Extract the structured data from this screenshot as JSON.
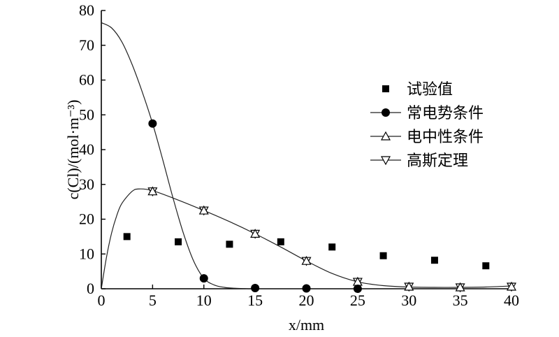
{
  "chart_data": {
    "type": "scatter",
    "xlabel": "x/mm",
    "ylabel": "c(Cl)/(mol·m⁻³)",
    "xlim": [
      0,
      40
    ],
    "ylim": [
      0,
      80
    ],
    "xticks": [
      0,
      5,
      10,
      15,
      20,
      25,
      30,
      35,
      40
    ],
    "yticks": [
      0,
      10,
      20,
      30,
      40,
      50,
      60,
      70,
      80
    ],
    "grid": false,
    "legend_position": "right",
    "series": [
      {
        "name": "试验值",
        "marker": "square",
        "x": [
          2.5,
          7.5,
          12.5,
          17.5,
          22.5,
          27.5,
          32.5,
          37.5
        ],
        "y": [
          15,
          13.5,
          12.8,
          13.5,
          12,
          9.5,
          8.2,
          6.6
        ]
      },
      {
        "name": "常电势条件",
        "marker": "circle",
        "x": [
          5,
          10,
          15,
          20,
          25
        ],
        "y": [
          47.5,
          3,
          0.2,
          0.1,
          0
        ],
        "curve_x": [
          0,
          1,
          2,
          3,
          4,
          5,
          6,
          7,
          8,
          9,
          10,
          11,
          12,
          13,
          14,
          15,
          20,
          25,
          30,
          35,
          40
        ],
        "curve_y": [
          76.5,
          75,
          71,
          64.5,
          56.5,
          47.5,
          37,
          26,
          16,
          8,
          3,
          1.1,
          0.4,
          0.15,
          0.05,
          0,
          0,
          0,
          0,
          0,
          0
        ]
      },
      {
        "name": "电中性条件",
        "marker": "triangle-up",
        "x": [
          5,
          10,
          15,
          20,
          25,
          30,
          35,
          40
        ],
        "y": [
          28,
          22.5,
          15.8,
          8,
          2,
          0.6,
          0.4,
          0.6
        ],
        "curve_x": [
          0,
          0.5,
          1,
          1.5,
          2,
          3,
          3.7,
          5,
          7.5,
          10,
          12.5,
          15,
          17.5,
          20,
          22.5,
          25,
          27.5,
          30,
          32.5,
          35,
          37.5,
          40
        ],
        "curve_y": [
          0,
          9,
          16,
          21,
          24.5,
          28,
          28.7,
          28.2,
          25.5,
          22.5,
          19.3,
          15.8,
          12,
          8,
          4.4,
          2,
          0.9,
          0.5,
          0.4,
          0.4,
          0.5,
          0.8
        ]
      },
      {
        "name": "高斯定理",
        "marker": "triangle-down",
        "x": [
          5,
          10,
          15,
          20,
          25,
          30,
          35,
          40
        ],
        "y": [
          28,
          22.5,
          15.8,
          8,
          2,
          0.6,
          0.4,
          0.6
        ]
      }
    ]
  }
}
